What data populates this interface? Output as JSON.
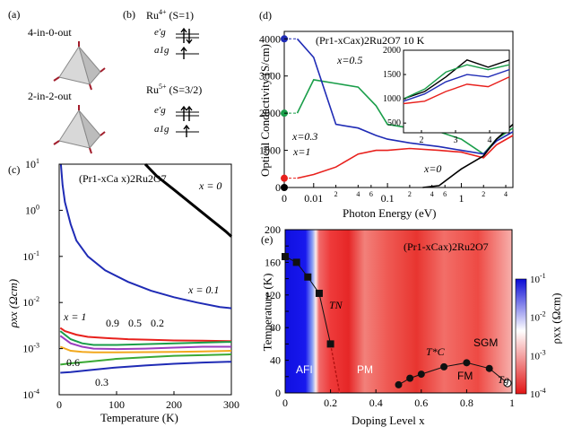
{
  "panel_a": {
    "label": "(a)",
    "config_top": "4-in-0-out",
    "config_bottom": "2-in-2-out"
  },
  "panel_b": {
    "label": "(b)",
    "ru4": "Ru",
    "ru4_charge": "4+",
    "ru4_spin": "(S=1)",
    "ru5": "Ru",
    "ru5_charge": "5+",
    "ru5_spin": "(S=3/2)",
    "eg_label": "e′g",
    "a1g_label": "a1g"
  },
  "panel_c": {
    "label": "(c)",
    "compound": "(Pr1-xCa x)2Ru2O7",
    "xlabel": "Temperature (K)",
    "ylabel": "ρxx (Ωcm)",
    "xticks": [
      "0",
      "100",
      "200",
      "300"
    ],
    "yticks": [
      "10^1",
      "10^0",
      "10^-1",
      "10^-2",
      "10^-3",
      "10^-4"
    ],
    "chart_data": {
      "type": "line",
      "x_range": [
        0,
        300
      ],
      "y_range": [
        0.0001,
        10
      ],
      "y_scale": "log",
      "series": [
        {
          "name": "x = 0",
          "color": "#000000",
          "x": [
            150,
            170,
            200,
            230,
            260,
            290,
            300
          ],
          "y": [
            10,
            5.5,
            2.8,
            1.4,
            0.7,
            0.35,
            0.27
          ]
        },
        {
          "name": "x = 0.1",
          "color": "#1f2bb5",
          "x": [
            3,
            6,
            10,
            20,
            30,
            50,
            80,
            120,
            160,
            200,
            240,
            280,
            300
          ],
          "y": [
            10,
            3.5,
            1.5,
            0.5,
            0.22,
            0.1,
            0.05,
            0.028,
            0.018,
            0.013,
            0.01,
            0.008,
            0.0075
          ]
        },
        {
          "name": "x = 1",
          "color": "#e8201c",
          "x": [
            2,
            10,
            30,
            50,
            80,
            120,
            160,
            200,
            250,
            300
          ],
          "y": [
            0.0028,
            0.0024,
            0.002,
            0.0018,
            0.0017,
            0.0016,
            0.00155,
            0.0015,
            0.00148,
            0.00145
          ]
        },
        {
          "name": "0.9",
          "color": "#1a9e4a",
          "x": [
            2,
            20,
            40,
            60,
            100,
            150,
            200,
            250,
            300
          ],
          "y": [
            0.0024,
            0.0016,
            0.0013,
            0.0012,
            0.0012,
            0.00125,
            0.0013,
            0.00135,
            0.0014
          ]
        },
        {
          "name": "0.5",
          "color": "#9a3dbf",
          "x": [
            2,
            20,
            40,
            60,
            100,
            150,
            200,
            250,
            300
          ],
          "y": [
            0.0019,
            0.0013,
            0.0011,
            0.001,
            0.00098,
            0.001,
            0.00105,
            0.0011,
            0.0011
          ]
        },
        {
          "name": "0.2",
          "color": "#f2a81d",
          "x": [
            2,
            20,
            40,
            60,
            100,
            150,
            200,
            250,
            300
          ],
          "y": [
            0.0011,
            0.0009,
            0.00085,
            0.00083,
            0.00083,
            0.00084,
            0.00085,
            0.00087,
            0.0009
          ]
        },
        {
          "name": "0.6",
          "color": "#3aa935",
          "x": [
            2,
            20,
            50,
            100,
            150,
            200,
            250,
            300
          ],
          "y": [
            0.00045,
            0.00048,
            0.00052,
            0.0006,
            0.00065,
            0.0007,
            0.00072,
            0.00075
          ]
        },
        {
          "name": "0.3",
          "color": "#1f2bb5",
          "x": [
            2,
            20,
            50,
            100,
            150,
            200,
            250,
            300
          ],
          "y": [
            0.0003,
            0.00031,
            0.00034,
            0.00039,
            0.00043,
            0.00047,
            0.0005,
            0.00052
          ]
        }
      ]
    },
    "labels": {
      "x0": "x = 0",
      "x01": "x = 0.1",
      "x1": "x = 1",
      "v09": "0.9",
      "v05": "0.5",
      "v02": "0.2",
      "v06": "0.6",
      "v03": "0.3"
    }
  },
  "panel_d": {
    "label": "(d)",
    "title": "(Pr1-xCax)2Ru2O7 10 K",
    "xlabel": "Photon Energy (eV)",
    "ylabel": "Optical Conductivity (S/cm)",
    "yticks": [
      "0",
      "1000",
      "2000",
      "3000",
      "4000"
    ],
    "xticks": [
      "0",
      "0.01",
      "0.1",
      "1"
    ],
    "xminor": [
      "2",
      "4",
      "6",
      "2",
      "4",
      "6",
      "2",
      "4"
    ],
    "inset_yticks": [
      "500",
      "1000",
      "1500",
      "2000"
    ],
    "inset_xticks": [
      "2",
      "3",
      "4"
    ],
    "chart_data": {
      "type": "line",
      "x_scale": "log",
      "x_range": [
        0.005,
        5
      ],
      "y_range": [
        0,
        4200
      ],
      "series": [
        {
          "name": "x=0.5",
          "color": "#1a9e4a",
          "x": [
            0.006,
            0.01,
            0.02,
            0.04,
            0.07,
            0.1,
            0.2,
            0.5,
            1,
            2,
            3,
            5
          ],
          "y": [
            2000,
            2900,
            2800,
            2700,
            2200,
            1700,
            1600,
            1500,
            1300,
            900,
            1300,
            1600
          ]
        },
        {
          "name": "x=0.3",
          "color": "#1f2bb5",
          "x": [
            0.006,
            0.01,
            0.02,
            0.04,
            0.07,
            0.1,
            0.2,
            0.5,
            1,
            2,
            3,
            5
          ],
          "y": [
            4000,
            3500,
            1700,
            1600,
            1400,
            1300,
            1200,
            1100,
            1000,
            900,
            1250,
            1500
          ]
        },
        {
          "name": "x=1",
          "color": "#e8201c",
          "x": [
            0.006,
            0.01,
            0.02,
            0.04,
            0.07,
            0.1,
            0.2,
            0.5,
            1,
            2,
            3,
            5
          ],
          "y": [
            250,
            350,
            550,
            900,
            1000,
            1000,
            1050,
            1000,
            950,
            800,
            1150,
            1400
          ]
        },
        {
          "name": "x=0",
          "color": "#000000",
          "x": [
            0.3,
            0.5,
            1,
            2,
            3,
            5
          ],
          "y": [
            0,
            50,
            500,
            850,
            1300,
            1700
          ]
        }
      ],
      "inset_series": [
        {
          "name": "x=0",
          "color": "#000000",
          "y": [
            1000,
            1150,
            1450,
            1800,
            1650,
            1800
          ]
        },
        {
          "name": "x=0.5",
          "color": "#1a9e4a",
          "y": [
            1000,
            1200,
            1550,
            1700,
            1600,
            1700
          ]
        },
        {
          "name": "x=0.3",
          "color": "#1f2bb5",
          "y": [
            950,
            1100,
            1350,
            1500,
            1450,
            1600
          ]
        },
        {
          "name": "x=1",
          "color": "#e8201c",
          "y": [
            900,
            950,
            1150,
            1300,
            1250,
            1450
          ]
        }
      ]
    },
    "labels": {
      "x05": "x=0.5",
      "x03": "x=0.3",
      "x1": "x=1",
      "x0": "x=0"
    }
  },
  "panel_e": {
    "label": "(e)",
    "compound": "(Pr1-xCax)2Ru2O7",
    "xlabel": "Doping Level x",
    "ylabel": "Temperature (K)",
    "xticks": [
      "0",
      "0.2",
      "0.4",
      "0.6",
      "0.8",
      "1"
    ],
    "yticks": [
      "0",
      "20",
      "40",
      "60",
      "80",
      "100",
      "120",
      "140",
      "160",
      "180",
      "200"
    ],
    "colorbar_ticks": [
      "10^-1",
      "10^-2",
      "10^-3",
      "10^-4"
    ],
    "colorbar_label": "ρxx (Ωcm)",
    "phase_labels": {
      "afi": "AFI",
      "pm": "PM",
      "fm": "FM",
      "sgm": "SGM",
      "tn": "TN",
      "tc": "T*C",
      "tg": "Tg"
    },
    "chart_data": {
      "type": "scatter",
      "TN_points": {
        "x": [
          0,
          0.05,
          0.1,
          0.15,
          0.2
        ],
        "y": [
          167,
          160,
          142,
          122,
          60
        ]
      },
      "TC_points": {
        "x": [
          0.5,
          0.55,
          0.6,
          0.7,
          0.8,
          0.9
        ],
        "y": [
          10,
          18,
          23,
          32,
          37,
          30
        ]
      },
      "Tg_point": {
        "x": [
          0.98
        ],
        "y": [
          12
        ]
      },
      "x_range": [
        0,
        1
      ],
      "y_range": [
        0,
        200
      ]
    }
  }
}
